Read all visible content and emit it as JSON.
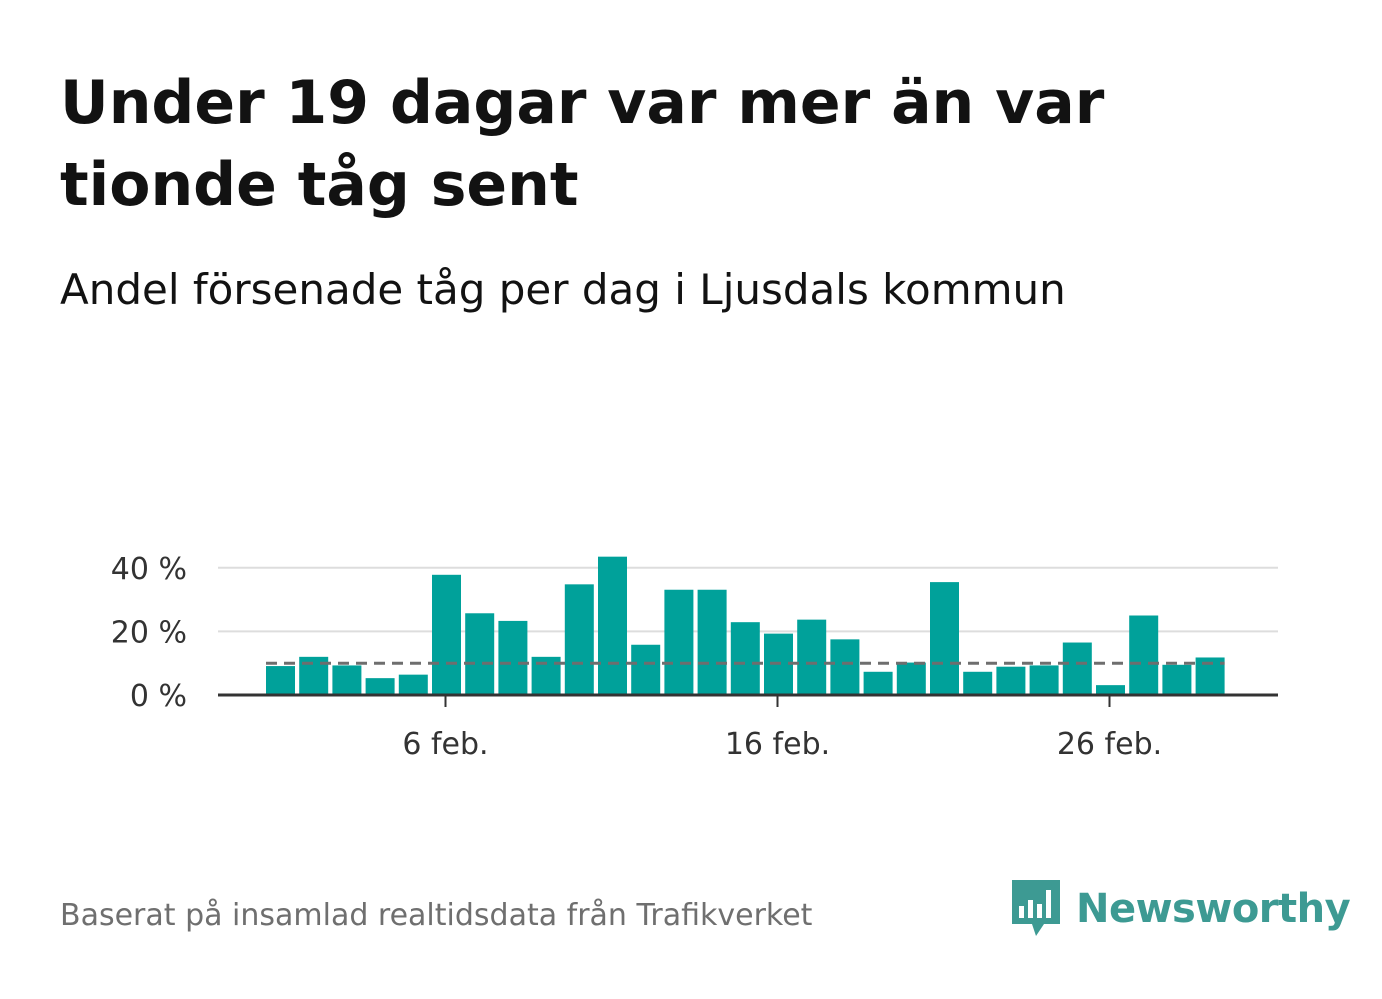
{
  "header": {
    "title": "Under 19 dagar var mer än var tionde tåg sent",
    "subtitle": "Andel försenade tåg per dag i Ljusdals kommun"
  },
  "footer": {
    "source": "Baserat på insamlad realtidsdata från Trafikverket",
    "brand": "Newsworthy",
    "brand_icon": "newsworthy-logo-icon"
  },
  "colors": {
    "bar": "#00a19a",
    "reference_line": "#6e6e6e",
    "grid": "#dddddd",
    "axis": "#333333",
    "brand": "#3d9a93"
  },
  "chart_data": {
    "type": "bar",
    "x": [
      "1 feb.",
      "2 feb.",
      "3 feb.",
      "4 feb.",
      "5 feb.",
      "6 feb.",
      "7 feb.",
      "8 feb.",
      "9 feb.",
      "10 feb.",
      "11 feb.",
      "12 feb.",
      "13 feb.",
      "14 feb.",
      "15 feb.",
      "16 feb.",
      "17 feb.",
      "18 feb.",
      "19 feb.",
      "20 feb.",
      "21 feb.",
      "22 feb.",
      "23 feb.",
      "24 feb.",
      "25 feb.",
      "26 feb.",
      "27 feb.",
      "28 feb.",
      "29 feb."
    ],
    "values": [
      9.1,
      12.0,
      9.3,
      5.3,
      6.4,
      37.8,
      25.7,
      23.3,
      12.0,
      34.8,
      43.5,
      15.8,
      33.1,
      33.1,
      22.9,
      19.3,
      23.7,
      17.5,
      7.3,
      10.2,
      35.5,
      7.3,
      8.9,
      9.3,
      16.5,
      3.1,
      25.0,
      9.5,
      11.8
    ],
    "reference_line": 10,
    "ylim": [
      0,
      45
    ],
    "yticks": [
      0,
      20,
      40
    ],
    "ytick_labels": [
      "0 %",
      "20 %",
      "40 %"
    ],
    "xtick_labels": [
      "6 feb.",
      "16 feb.",
      "26 feb."
    ],
    "xtick_index": [
      5,
      15,
      25
    ],
    "xlabel": "",
    "ylabel": "",
    "grid": true
  }
}
